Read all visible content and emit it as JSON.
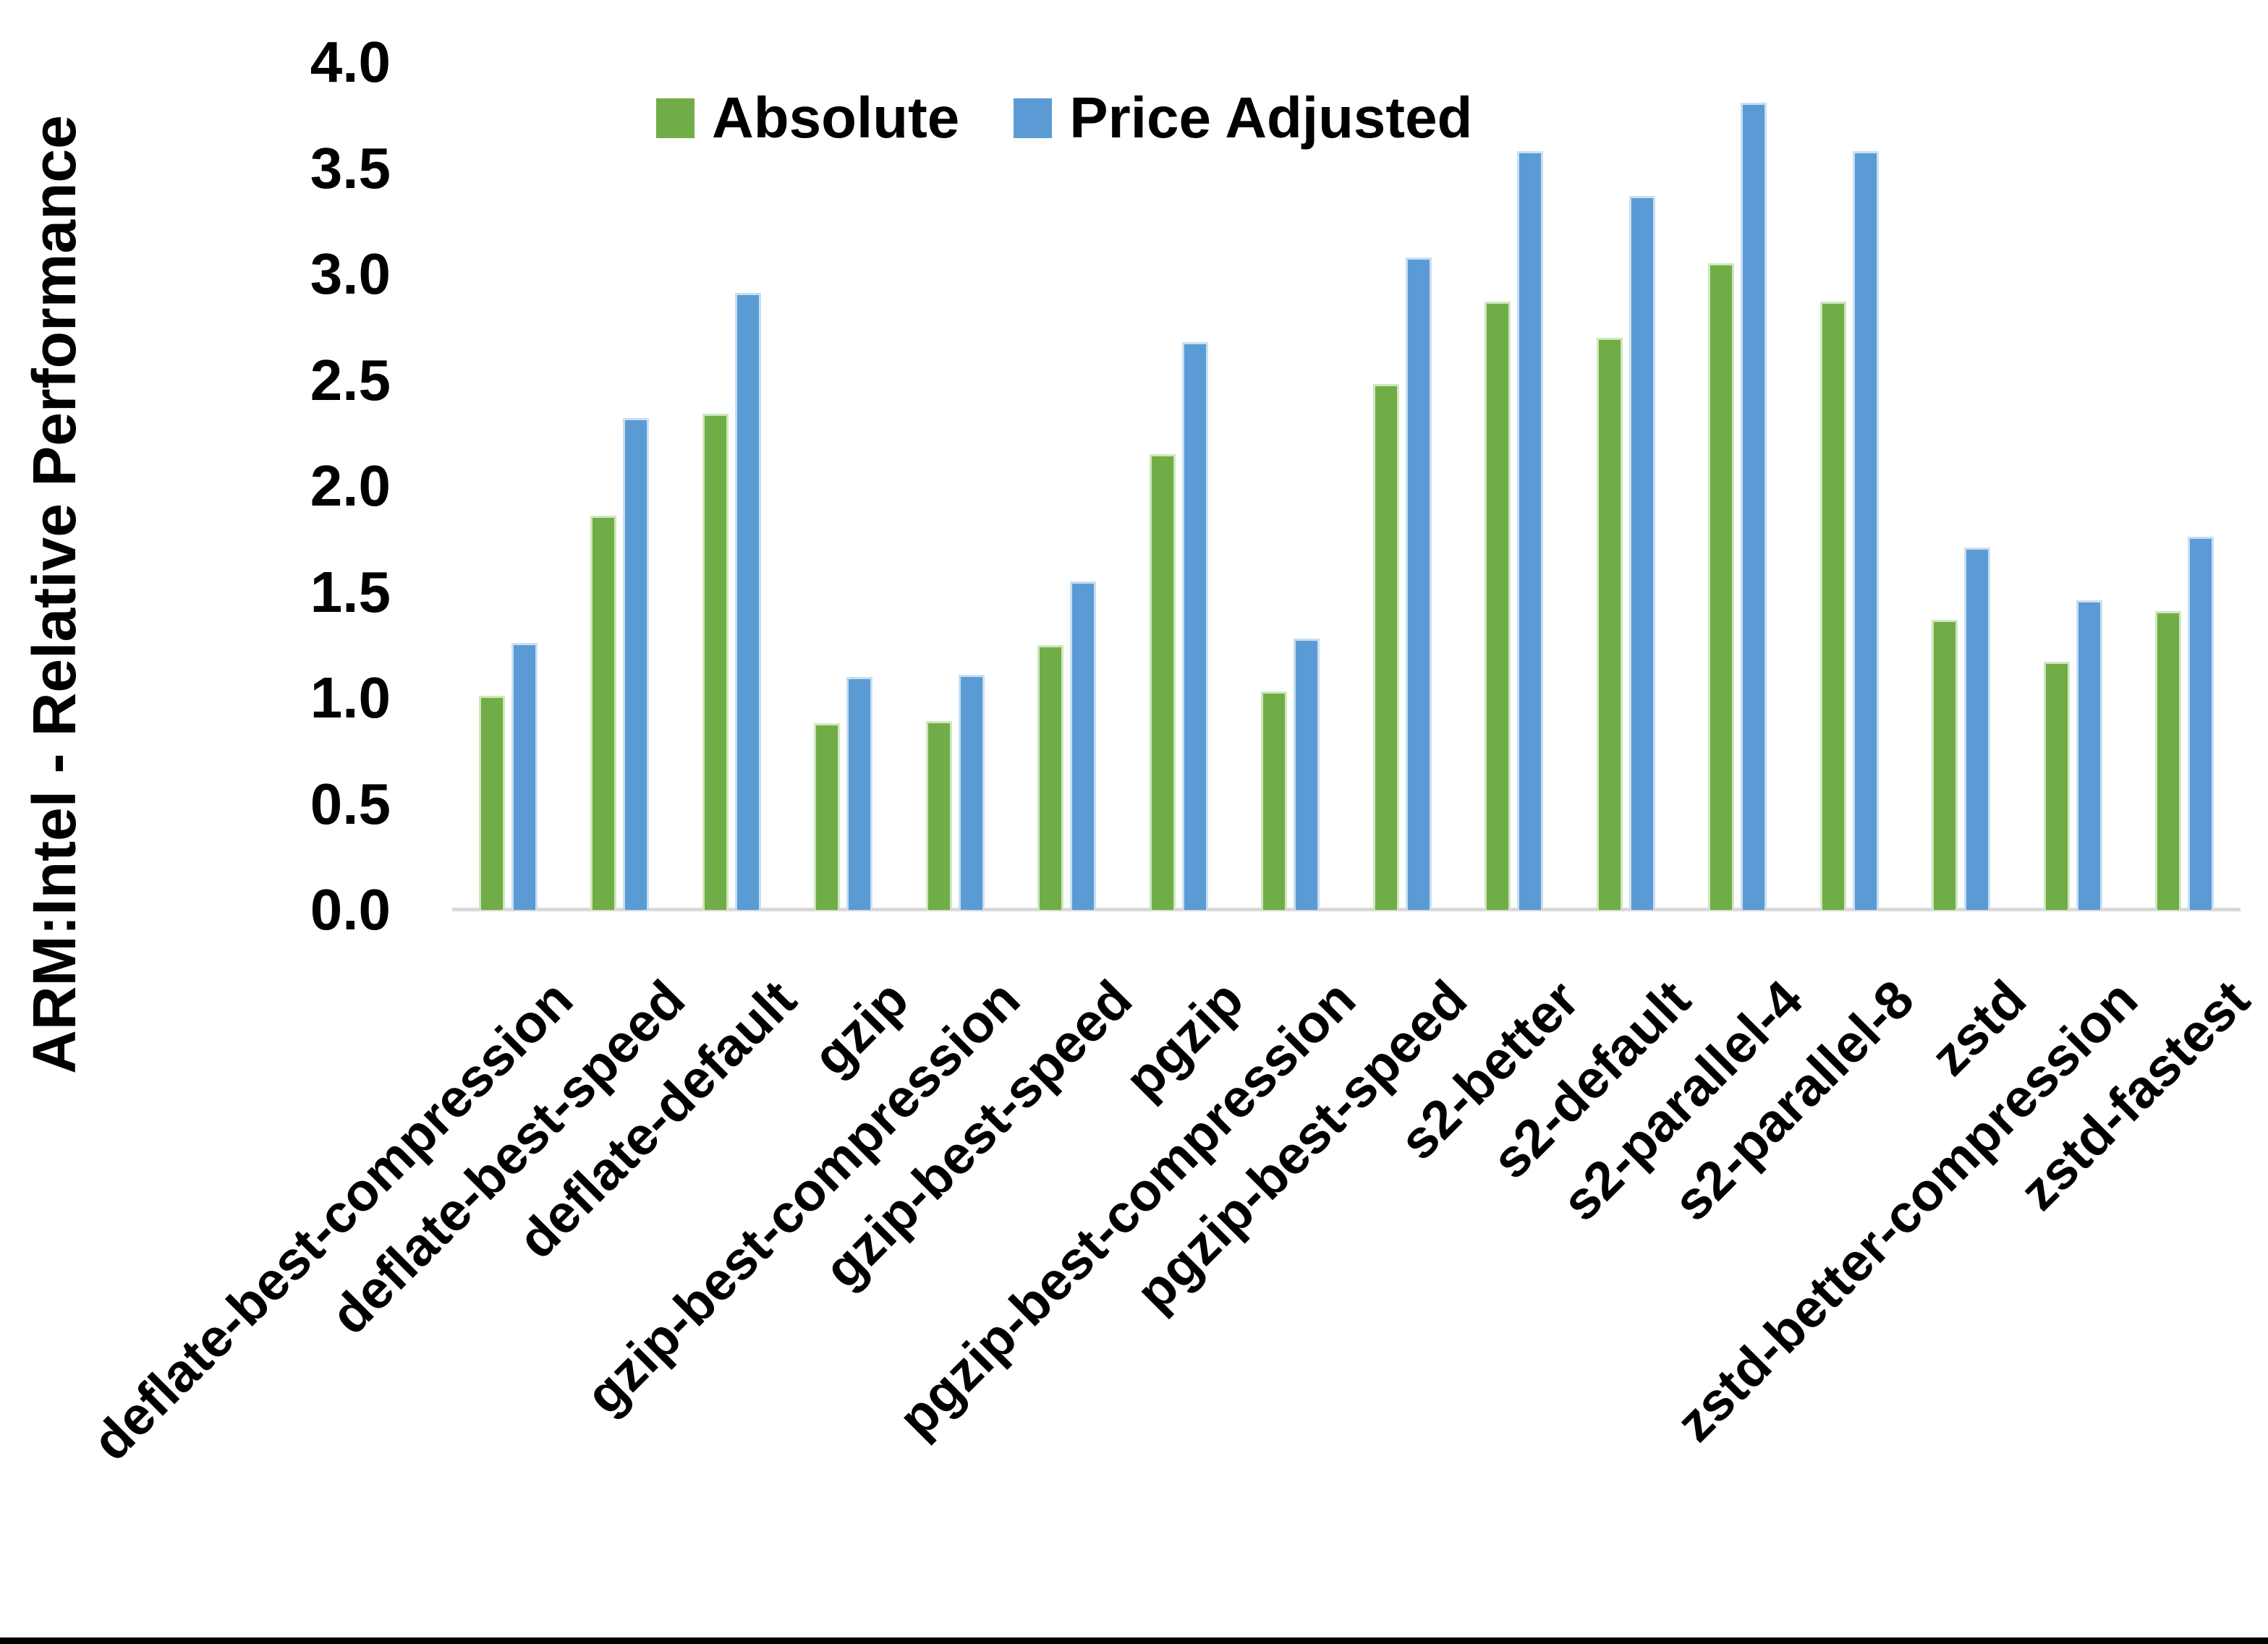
{
  "chart_data": {
    "type": "bar",
    "title": "",
    "xlabel": "",
    "ylabel": "ARM:Intel - Relative Performance",
    "ylim": [
      0.0,
      4.0
    ],
    "ytick_step": 0.5,
    "ytick_labels": [
      "4.0",
      "3.5",
      "3.0",
      "2.5",
      "2.0",
      "1.5",
      "1.0",
      "0.5",
      "0.0"
    ],
    "grid": "off",
    "legend_position": "top-center",
    "categories": [
      "deflate-best-compression",
      "deflate-best-speed",
      "deflate-default",
      "gzip",
      "gzip-best-compression",
      "gzip-best-speed",
      "pgzip",
      "pgzip-best-compression",
      "pgzip-best-speed",
      "s2-better",
      "s2-default",
      "s2-parallel-4",
      "s2-parallel-8",
      "zstd",
      "zstd-better-compression",
      "zstd-fastest"
    ],
    "series": [
      {
        "name": "Absolute",
        "color": "#70AD47",
        "edge_color": "#cfe7bd",
        "values": [
          1.01,
          1.86,
          2.34,
          0.88,
          0.89,
          1.25,
          2.15,
          1.03,
          2.48,
          2.87,
          2.7,
          3.05,
          2.87,
          1.37,
          1.17,
          1.41
        ]
      },
      {
        "name": "Price Adjusted",
        "color": "#5B9BD5",
        "edge_color": "#c8dff2",
        "values": [
          1.26,
          2.32,
          2.91,
          1.1,
          1.11,
          1.55,
          2.68,
          1.28,
          3.08,
          3.58,
          3.37,
          3.81,
          3.58,
          1.71,
          1.46,
          1.76
        ]
      }
    ],
    "axis_line_color": "#d9d9d9",
    "text_color": "#000000",
    "background_color": "#ffffff",
    "bottom_border_color": "#000000"
  }
}
